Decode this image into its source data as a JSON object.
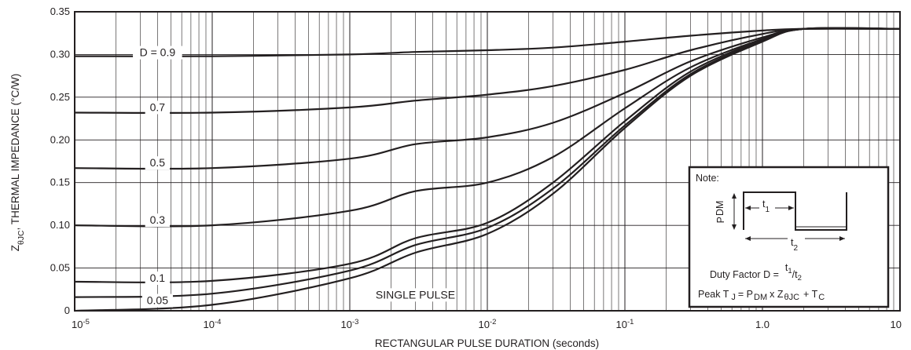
{
  "chart_data": {
    "type": "line",
    "x_scale": "log",
    "xlim": [
      1e-05,
      10
    ],
    "ylim": [
      0,
      0.35
    ],
    "grid": true,
    "xlabel": "RECTANGULAR PULSE DURATION (seconds)",
    "ylabel": {
      "prefix": "Z",
      "subscript": "θJC",
      "suffix": ", THERMAL IMPEDANCE (°C/W)"
    },
    "y_ticks": [
      {
        "value": 0,
        "label": "0"
      },
      {
        "value": 0.05,
        "label": "0.05"
      },
      {
        "value": 0.1,
        "label": "0.10"
      },
      {
        "value": 0.15,
        "label": "0.15"
      },
      {
        "value": 0.2,
        "label": "0.20"
      },
      {
        "value": 0.25,
        "label": "0.25"
      },
      {
        "value": 0.3,
        "label": "0.30"
      },
      {
        "value": 0.35,
        "label": "0.35"
      }
    ],
    "x_ticks": [
      {
        "value": 1e-05,
        "base": "10",
        "exp": "-5"
      },
      {
        "value": 0.0001,
        "base": "10",
        "exp": "-4"
      },
      {
        "value": 0.001,
        "base": "10",
        "exp": "-3"
      },
      {
        "value": 0.01,
        "base": "10",
        "exp": "-2"
      },
      {
        "value": 0.1,
        "base": "10",
        "exp": "-1"
      },
      {
        "value": 1,
        "base": "1.0",
        "exp": ""
      },
      {
        "value": 10,
        "base": "10",
        "exp": ""
      }
    ],
    "series": [
      {
        "name": "D = 0.9",
        "x": [
          1e-05,
          0.0001,
          0.001,
          0.003,
          0.01,
          0.03,
          0.1,
          0.3,
          1,
          2,
          10
        ],
        "y": [
          0.298,
          0.298,
          0.3,
          0.303,
          0.305,
          0.308,
          0.315,
          0.322,
          0.328,
          0.33,
          0.33
        ]
      },
      {
        "name": "0.7",
        "x": [
          1e-05,
          0.0001,
          0.001,
          0.003,
          0.01,
          0.03,
          0.1,
          0.3,
          1,
          2,
          10
        ],
        "y": [
          0.232,
          0.232,
          0.238,
          0.246,
          0.253,
          0.263,
          0.282,
          0.305,
          0.324,
          0.33,
          0.33
        ]
      },
      {
        "name": "0.5",
        "x": [
          1e-05,
          0.0001,
          0.001,
          0.003,
          0.01,
          0.03,
          0.1,
          0.3,
          1,
          2,
          10
        ],
        "y": [
          0.167,
          0.167,
          0.178,
          0.195,
          0.203,
          0.22,
          0.255,
          0.292,
          0.32,
          0.33,
          0.33
        ]
      },
      {
        "name": "0.3",
        "x": [
          1e-05,
          0.0001,
          0.001,
          0.003,
          0.01,
          0.03,
          0.1,
          0.3,
          1,
          2,
          10
        ],
        "y": [
          0.1,
          0.1,
          0.117,
          0.14,
          0.15,
          0.18,
          0.237,
          0.285,
          0.318,
          0.33,
          0.33
        ]
      },
      {
        "name": "0.1",
        "x": [
          1e-05,
          0.0001,
          0.001,
          0.003,
          0.01,
          0.03,
          0.1,
          0.3,
          1,
          2,
          10
        ],
        "y": [
          0.034,
          0.035,
          0.055,
          0.085,
          0.103,
          0.15,
          0.222,
          0.28,
          0.317,
          0.33,
          0.33
        ]
      },
      {
        "name": "0.05",
        "x": [
          1e-05,
          0.0001,
          0.001,
          0.003,
          0.01,
          0.03,
          0.1,
          0.3,
          1,
          2,
          10
        ],
        "y": [
          0.016,
          0.02,
          0.047,
          0.077,
          0.097,
          0.143,
          0.217,
          0.277,
          0.316,
          0.33,
          0.33
        ]
      },
      {
        "name": "SINGLE PULSE",
        "x": [
          1e-05,
          0.0001,
          0.001,
          0.003,
          0.01,
          0.03,
          0.1,
          0.3,
          1,
          2,
          10
        ],
        "y": [
          0.0,
          0.007,
          0.038,
          0.068,
          0.09,
          0.137,
          0.214,
          0.275,
          0.315,
          0.33,
          0.33
        ]
      }
    ],
    "note": {
      "title": "Note:",
      "p_label": "P",
      "p_sub": "DM",
      "t1_label": "t",
      "t1_sub": "1",
      "t2_label": "t",
      "t2_sub": "2",
      "duty_label": "Duty Factor D =",
      "duty_num": "t",
      "duty_num_sub": "1",
      "duty_slash": "/t",
      "duty_den_sub": "2",
      "peak_a": "Peak T",
      "peak_a_sub": "J",
      "peak_b": "= P",
      "peak_b_sub": "DM",
      "peak_c": "x Z",
      "peak_c_sub": "θJC",
      "peak_d": "+ T",
      "peak_d_sub": "C"
    }
  }
}
